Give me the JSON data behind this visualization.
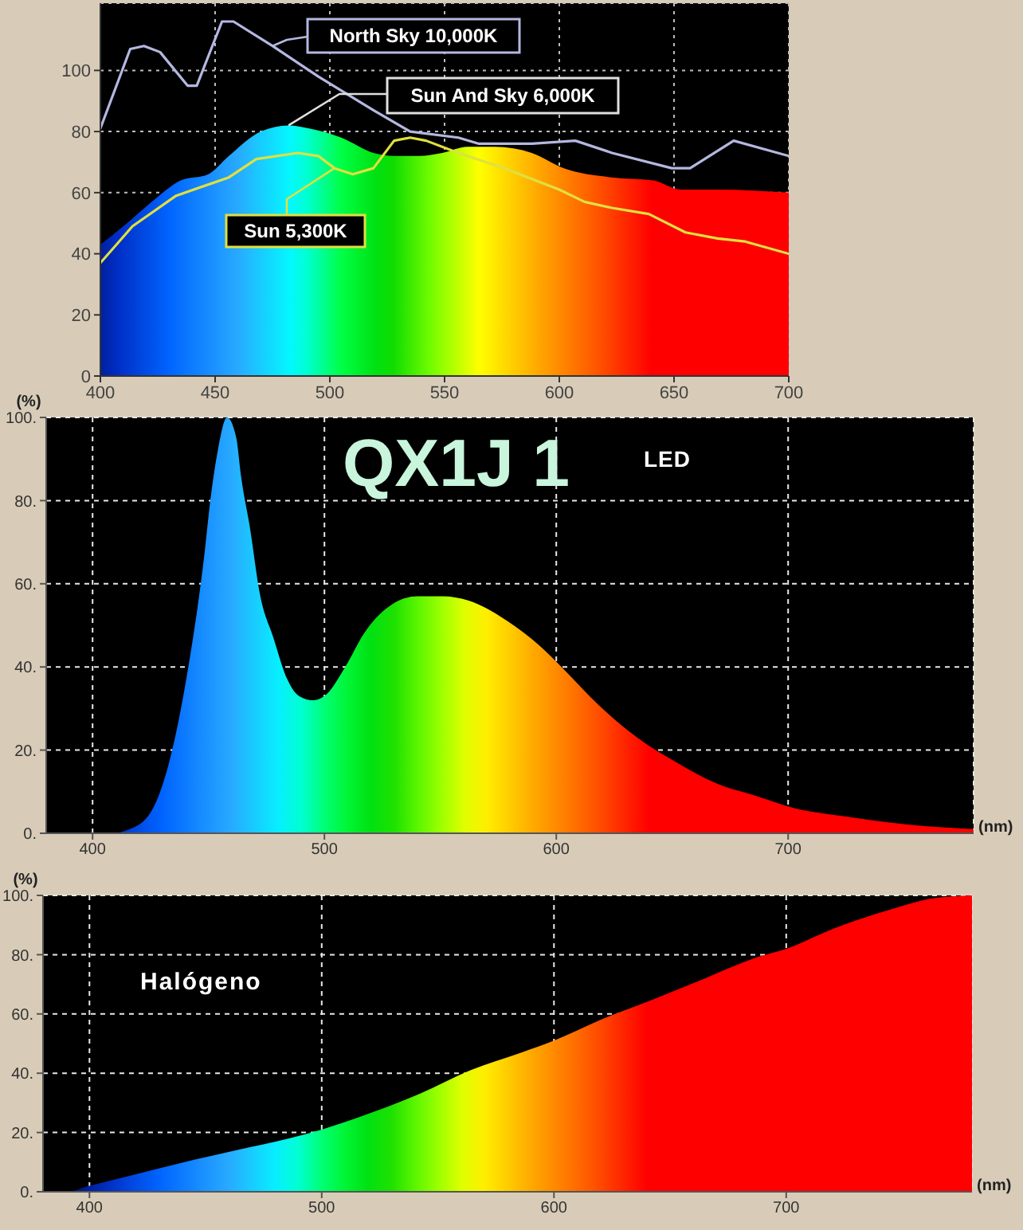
{
  "chart_data": [
    {
      "type": "line",
      "xlim": [
        400,
        700
      ],
      "ylim": [
        0,
        122
      ],
      "xticks": [
        400,
        450,
        500,
        550,
        600,
        650,
        700
      ],
      "yticks": [
        0,
        20,
        40,
        60,
        80,
        100
      ],
      "grid": true,
      "series": [
        {
          "name": "Sun And Sky 6,000K",
          "type": "area",
          "x": [
            400,
            410,
            424,
            435,
            447,
            456,
            470,
            482,
            491,
            505,
            519,
            528,
            539,
            549,
            560,
            572,
            588,
            602,
            623,
            641,
            653,
            669,
            700
          ],
          "values": [
            43,
            49,
            58,
            64,
            66,
            72,
            80,
            82,
            81,
            78,
            73,
            72,
            72,
            73,
            75,
            75,
            73,
            68,
            65,
            64,
            61,
            61,
            60
          ]
        },
        {
          "name": "Sun 5,300K",
          "color": "#e0e040",
          "x": [
            400,
            414,
            433,
            456,
            468,
            486,
            495,
            502,
            510,
            519,
            528,
            535,
            542,
            556,
            576,
            600,
            611,
            623,
            639,
            655,
            669,
            681,
            700
          ],
          "values": [
            37,
            49,
            59,
            65,
            71,
            73,
            72,
            68,
            66,
            68,
            77,
            78,
            77,
            73,
            68,
            61,
            57,
            55,
            53,
            47,
            45,
            44,
            40
          ]
        },
        {
          "name": "North Sky 10,000K",
          "color": "#b4b8e0",
          "x": [
            400,
            413,
            419,
            426,
            438,
            442,
            453,
            458,
            475,
            495,
            519,
            535,
            556,
            565,
            588,
            607,
            623,
            649,
            657,
            676,
            700
          ],
          "values": [
            81,
            107,
            108,
            106,
            95,
            95,
            116,
            116,
            108,
            98,
            87,
            80,
            78,
            76,
            76,
            77,
            73,
            68,
            68,
            77,
            72
          ]
        }
      ]
    },
    {
      "type": "area",
      "annotations": [
        "QX1J 1",
        "LED"
      ],
      "xlabel": "(nm)",
      "ylabel": "(%)",
      "xlim": [
        380,
        780
      ],
      "ylim": [
        0,
        100
      ],
      "xticks": [
        400,
        500,
        600,
        700
      ],
      "yticks": [
        {
          "value": 0,
          "label": "0."
        },
        {
          "value": 20,
          "label": "20."
        },
        {
          "value": 40,
          "label": "40."
        },
        {
          "value": 60,
          "label": "60."
        },
        {
          "value": 80,
          "label": "80."
        },
        {
          "value": 100,
          "label": "100."
        }
      ],
      "grid": true,
      "x": [
        400,
        408,
        416,
        425,
        433,
        441,
        448,
        451,
        454,
        458,
        462,
        464,
        468,
        472,
        478,
        484,
        489,
        495,
        500,
        509,
        517,
        529,
        540,
        551,
        562,
        579,
        593,
        604,
        618,
        635,
        652,
        669,
        686,
        703,
        725,
        753,
        780
      ],
      "values": [
        0,
        0,
        1,
        5,
        17,
        39,
        66,
        81,
        92,
        100,
        95,
        86,
        73,
        58,
        47,
        37,
        33,
        32,
        33,
        40,
        48,
        55,
        57,
        57,
        56,
        51,
        45,
        39,
        31,
        23,
        17,
        12,
        9,
        6,
        4,
        2,
        1
      ]
    },
    {
      "type": "area",
      "annotations": [
        "Halógeno"
      ],
      "xlabel": "(nm)",
      "ylabel": "(%)",
      "xlim": [
        380,
        780
      ],
      "ylim": [
        0,
        100
      ],
      "xticks": [
        400,
        500,
        600,
        700
      ],
      "yticks": [
        {
          "value": 0,
          "label": "0."
        },
        {
          "value": 20,
          "label": "20."
        },
        {
          "value": 40,
          "label": "40."
        },
        {
          "value": 60,
          "label": "60."
        },
        {
          "value": 80,
          "label": "80."
        },
        {
          "value": 100,
          "label": "100."
        }
      ],
      "grid": true,
      "x": [
        380,
        390,
        400,
        418,
        441,
        463,
        486,
        500,
        519,
        542,
        564,
        586,
        600,
        620,
        643,
        665,
        687,
        700,
        721,
        744,
        763,
        780
      ],
      "values": [
        0,
        0,
        2,
        5.5,
        10,
        14,
        18,
        21,
        26,
        33,
        41,
        47,
        51,
        58,
        65,
        72,
        79,
        82,
        89,
        95,
        99,
        100
      ]
    }
  ]
}
